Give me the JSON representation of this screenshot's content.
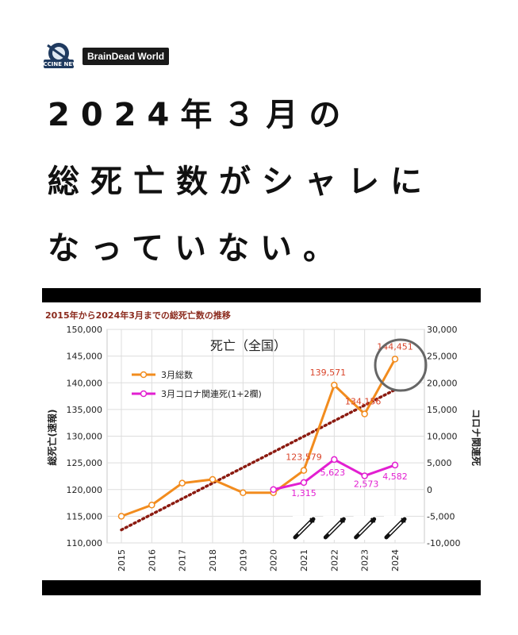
{
  "header": {
    "logo_text": "VACCINE NEWS",
    "brand": "BrainDead World"
  },
  "headline": {
    "line1": "2024年３月の",
    "line2": "総死亡数がシャレに",
    "line3": "なっていない。"
  },
  "chart_caption": "2015年から2024年3月までの総死亡数の推移",
  "colors": {
    "total": "#f28c1e",
    "covid": "#e21fd1",
    "trend": "#8b1a10",
    "caption": "#8b2a1d"
  },
  "chart_data": {
    "type": "line",
    "title": "死亡（全国）",
    "categories": [
      "2015",
      "2016",
      "2017",
      "2018",
      "2019",
      "2020",
      "2021",
      "2022",
      "2023",
      "2024"
    ],
    "ylabel": "総死亡(速報)",
    "y2label": "コロナ関連死",
    "ylim": [
      110000,
      150000
    ],
    "y2lim": [
      -10000,
      30000
    ],
    "yticks": [
      "110,000",
      "115,000",
      "120,000",
      "125,000",
      "130,000",
      "135,000",
      "140,000",
      "145,000",
      "150,000"
    ],
    "y2ticks": [
      "-10,000",
      "-5,000",
      "0",
      "5,000",
      "10,000",
      "15,000",
      "20,000",
      "25,000",
      "30,000"
    ],
    "legend_position": "top-left",
    "series": [
      {
        "name": "3月総数",
        "axis": "left",
        "color": "#f28c1e",
        "values": [
          115000,
          117100,
          121200,
          121900,
          119400,
          119400,
          123579,
          139571,
          134156,
          144451
        ],
        "labels": [
          "",
          "",
          "",
          "",
          "",
          "",
          "123,579",
          "139,571",
          "134,156",
          "144,451"
        ]
      },
      {
        "name": "3月コロナ関連死(1+2欄)",
        "axis": "right",
        "color": "#e21fd1",
        "values": [
          null,
          null,
          null,
          null,
          null,
          0,
          1315,
          5623,
          2573,
          4582
        ],
        "labels": [
          "",
          "",
          "",
          "",
          "",
          "",
          "1,315",
          "5,623",
          "2,573",
          "4,582"
        ]
      }
    ],
    "trendline": {
      "type": "linear",
      "color": "#8b1a10",
      "series": "3月総数"
    },
    "annotations": {
      "circled": "144,451",
      "syringe_icons": [
        "2021",
        "2022",
        "2023",
        "2024"
      ]
    }
  }
}
